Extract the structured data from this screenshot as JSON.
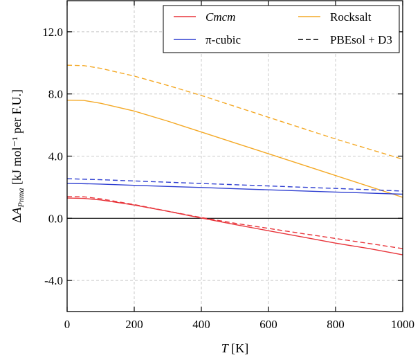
{
  "chart_data": {
    "type": "line",
    "xlabel": "T [K]",
    "ylabel": "ΔA_Pnma [kJ mol⁻¹ per F.U.]",
    "xlim": [
      0,
      1000
    ],
    "ylim": [
      -6.0,
      14.0
    ],
    "xticks": [
      "0",
      "200",
      "400",
      "600",
      "800",
      "1000"
    ],
    "yticks": [
      "-4.0",
      "0.0",
      "4.0",
      "8.0",
      "12.0"
    ],
    "grid": true,
    "legend_position": "top-right",
    "colors": {
      "Cmcm": "#e8343a",
      "Rocksalt": "#f4a926",
      "pi-cubic": "#2f3fd1",
      "PBEsol + D3": "#000000"
    },
    "legend": [
      {
        "label": "Cmcm",
        "color": "#e8343a",
        "dash": false,
        "italic": true
      },
      {
        "label": "Rocksalt",
        "color": "#f4a926",
        "dash": false,
        "italic": false
      },
      {
        "label": "π-cubic",
        "color": "#2f3fd1",
        "dash": false,
        "italic": false
      },
      {
        "label": "PBEsol + D3",
        "color": "#000000",
        "dash": true,
        "italic": false
      }
    ],
    "series": [
      {
        "name": "Cmcm",
        "color": "#e8343a",
        "dash": false,
        "x": [
          0,
          50,
          100,
          200,
          300,
          400,
          500,
          600,
          700,
          800,
          900,
          1000
        ],
        "y": [
          1.3,
          1.28,
          1.18,
          0.85,
          0.45,
          0.02,
          -0.4,
          -0.8,
          -1.2,
          -1.6,
          -1.95,
          -2.35
        ]
      },
      {
        "name": "Rocksalt",
        "color": "#f4a926",
        "dash": false,
        "x": [
          0,
          50,
          100,
          200,
          300,
          400,
          500,
          600,
          700,
          800,
          900,
          1000
        ],
        "y": [
          7.6,
          7.58,
          7.4,
          6.9,
          6.25,
          5.55,
          4.85,
          4.15,
          3.45,
          2.75,
          2.05,
          1.35
        ]
      },
      {
        "name": "π-cubic",
        "color": "#2f3fd1",
        "dash": false,
        "x": [
          0,
          100,
          200,
          300,
          400,
          500,
          600,
          700,
          800,
          900,
          1000
        ],
        "y": [
          2.25,
          2.2,
          2.12,
          2.05,
          1.98,
          1.9,
          1.83,
          1.76,
          1.69,
          1.62,
          1.55
        ]
      },
      {
        "name": "Cmcm (PBEsol + D3)",
        "color": "#e8343a",
        "dash": true,
        "x": [
          0,
          50,
          100,
          200,
          300,
          400,
          500,
          600,
          700,
          800,
          900,
          1000
        ],
        "y": [
          1.4,
          1.38,
          1.25,
          0.88,
          0.46,
          0.05,
          -0.32,
          -0.65,
          -0.98,
          -1.3,
          -1.62,
          -1.95
        ]
      },
      {
        "name": "Rocksalt (PBEsol + D3)",
        "color": "#f4a926",
        "dash": true,
        "x": [
          0,
          50,
          100,
          200,
          300,
          400,
          500,
          600,
          700,
          800,
          900,
          1000
        ],
        "y": [
          9.85,
          9.82,
          9.65,
          9.15,
          8.55,
          7.9,
          7.2,
          6.5,
          5.8,
          5.1,
          4.45,
          3.8
        ]
      },
      {
        "name": "π-cubic (PBEsol + D3)",
        "color": "#2f3fd1",
        "dash": true,
        "x": [
          0,
          100,
          200,
          300,
          400,
          500,
          600,
          700,
          800,
          900,
          1000
        ],
        "y": [
          2.55,
          2.48,
          2.4,
          2.32,
          2.24,
          2.16,
          2.08,
          2.0,
          1.92,
          1.84,
          1.75
        ]
      }
    ]
  }
}
